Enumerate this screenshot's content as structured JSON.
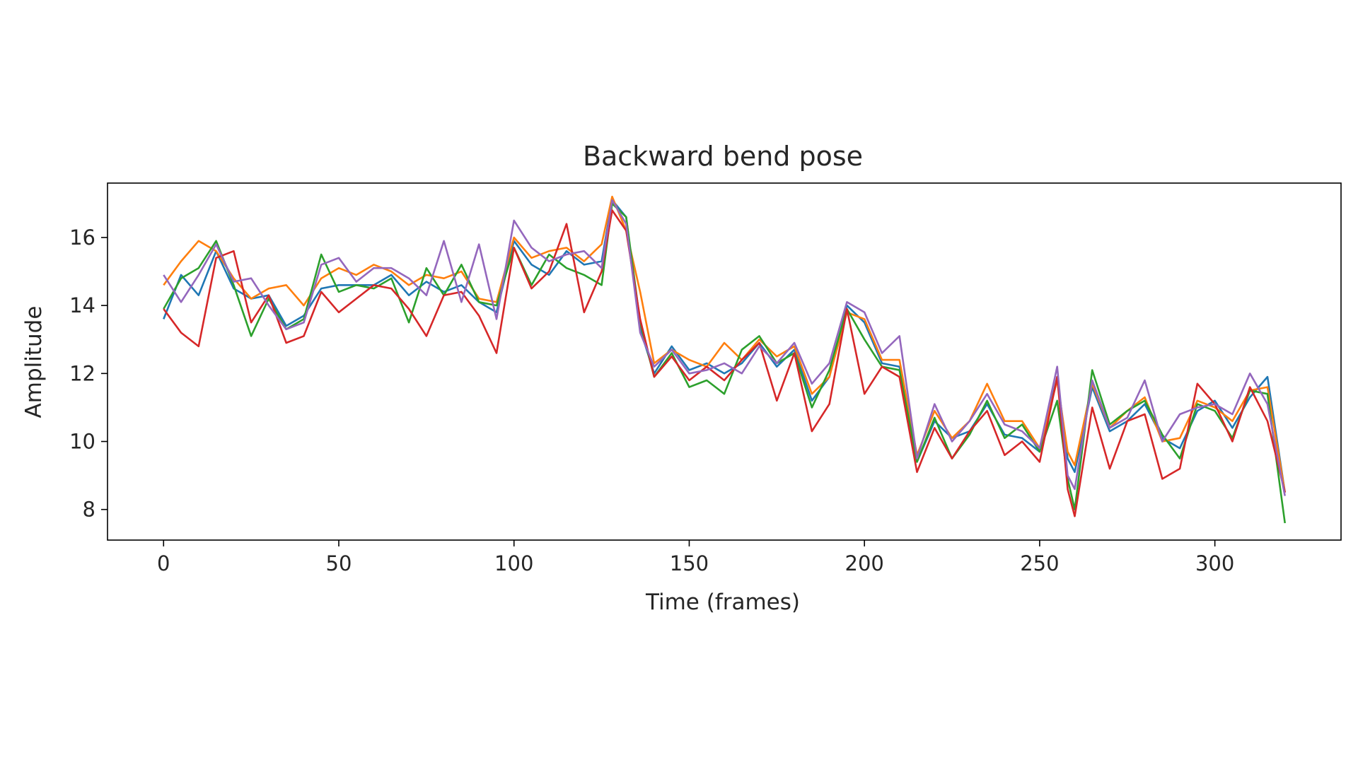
{
  "chart_data": {
    "type": "line",
    "title": "Backward bend pose",
    "xlabel": "Time (frames)",
    "ylabel": "Amplitude",
    "xlim": [
      -16,
      336
    ],
    "ylim": [
      7.1,
      17.6
    ],
    "xticks": [
      0,
      50,
      100,
      150,
      200,
      250,
      300
    ],
    "yticks": [
      8,
      10,
      12,
      14,
      16
    ],
    "grid": false,
    "legend": "none",
    "series": [
      {
        "color": "#1f77b4",
        "x": [
          0,
          5,
          10,
          15,
          20,
          25,
          30,
          35,
          40,
          45,
          50,
          55,
          60,
          65,
          70,
          75,
          80,
          85,
          90,
          95,
          100,
          105,
          110,
          115,
          120,
          125,
          128,
          132,
          136,
          140,
          145,
          150,
          155,
          160,
          165,
          170,
          175,
          180,
          185,
          190,
          195,
          200,
          205,
          210,
          215,
          220,
          225,
          230,
          235,
          240,
          245,
          250,
          255,
          258,
          260,
          265,
          270,
          275,
          280,
          285,
          290,
          295,
          300,
          305,
          310,
          315,
          320
        ],
        "y": [
          13.6,
          14.9,
          14.3,
          15.6,
          14.5,
          14.2,
          14.3,
          13.4,
          13.7,
          14.5,
          14.6,
          14.6,
          14.6,
          14.9,
          14.3,
          14.7,
          14.4,
          14.6,
          14.1,
          13.8,
          15.9,
          15.2,
          14.9,
          15.6,
          15.2,
          15.3,
          17.1,
          16.6,
          13.3,
          12.0,
          12.8,
          12.1,
          12.3,
          12.0,
          12.3,
          12.9,
          12.2,
          12.7,
          11.2,
          11.9,
          14.0,
          13.5,
          12.3,
          12.2,
          9.4,
          10.6,
          10.1,
          10.3,
          11.1,
          10.2,
          10.1,
          9.7,
          11.9,
          9.5,
          9.1,
          11.6,
          10.3,
          10.6,
          11.1,
          10.1,
          9.8,
          10.9,
          11.2,
          10.4,
          11.3,
          11.9,
          8.5
        ]
      },
      {
        "color": "#ff7f0e",
        "x": [
          0,
          5,
          10,
          15,
          20,
          25,
          30,
          35,
          40,
          45,
          50,
          55,
          60,
          65,
          70,
          75,
          80,
          85,
          90,
          95,
          100,
          105,
          110,
          115,
          120,
          125,
          128,
          132,
          136,
          140,
          145,
          150,
          155,
          160,
          165,
          170,
          175,
          180,
          185,
          190,
          195,
          200,
          205,
          210,
          215,
          220,
          225,
          230,
          235,
          240,
          245,
          250,
          255,
          258,
          260,
          265,
          270,
          275,
          280,
          285,
          290,
          295,
          300,
          305,
          310,
          315,
          320
        ],
        "y": [
          14.6,
          15.3,
          15.9,
          15.6,
          14.8,
          14.2,
          14.5,
          14.6,
          14.0,
          14.8,
          15.1,
          14.9,
          15.2,
          15.0,
          14.6,
          14.9,
          14.8,
          15.0,
          14.2,
          14.1,
          16.0,
          15.4,
          15.6,
          15.7,
          15.3,
          15.8,
          17.2,
          16.2,
          14.4,
          12.3,
          12.7,
          12.4,
          12.2,
          12.9,
          12.4,
          13.0,
          12.5,
          12.8,
          11.4,
          11.9,
          13.8,
          13.6,
          12.4,
          12.4,
          9.6,
          10.9,
          10.1,
          10.6,
          11.7,
          10.6,
          10.6,
          9.8,
          11.8,
          9.7,
          9.3,
          11.7,
          10.4,
          10.9,
          11.3,
          10.0,
          10.1,
          11.2,
          11.0,
          10.6,
          11.5,
          11.6,
          8.5
        ]
      },
      {
        "color": "#2ca02c",
        "x": [
          0,
          5,
          10,
          15,
          20,
          25,
          30,
          35,
          40,
          45,
          50,
          55,
          60,
          65,
          70,
          75,
          80,
          85,
          90,
          95,
          100,
          105,
          110,
          115,
          120,
          125,
          128,
          132,
          136,
          140,
          145,
          150,
          155,
          160,
          165,
          170,
          175,
          180,
          185,
          190,
          195,
          200,
          205,
          210,
          215,
          220,
          225,
          230,
          235,
          240,
          245,
          250,
          255,
          258,
          260,
          265,
          270,
          275,
          280,
          285,
          290,
          295,
          300,
          305,
          310,
          315,
          320
        ],
        "y": [
          13.9,
          14.8,
          15.1,
          15.9,
          14.6,
          13.1,
          14.2,
          13.3,
          13.6,
          15.5,
          14.4,
          14.6,
          14.5,
          14.8,
          13.5,
          15.1,
          14.3,
          15.2,
          14.1,
          14.0,
          15.7,
          14.6,
          15.5,
          15.1,
          14.9,
          14.6,
          17.0,
          16.6,
          13.5,
          11.9,
          12.6,
          11.6,
          11.8,
          11.4,
          12.7,
          13.1,
          12.3,
          12.6,
          11.0,
          12.1,
          13.9,
          13.0,
          12.2,
          12.1,
          9.4,
          10.7,
          9.5,
          10.2,
          11.2,
          10.1,
          10.5,
          9.7,
          11.2,
          8.9,
          8.0,
          12.1,
          10.5,
          10.9,
          11.2,
          10.2,
          9.5,
          11.1,
          10.9,
          10.1,
          11.5,
          11.4,
          7.6
        ]
      },
      {
        "color": "#d62728",
        "x": [
          0,
          5,
          10,
          15,
          20,
          25,
          30,
          35,
          40,
          45,
          50,
          55,
          60,
          65,
          70,
          75,
          80,
          85,
          90,
          95,
          100,
          105,
          110,
          115,
          120,
          125,
          128,
          132,
          136,
          140,
          145,
          150,
          155,
          160,
          165,
          170,
          175,
          180,
          185,
          190,
          195,
          200,
          205,
          210,
          215,
          220,
          225,
          230,
          235,
          240,
          245,
          250,
          255,
          258,
          260,
          265,
          270,
          275,
          280,
          285,
          290,
          295,
          300,
          305,
          310,
          315,
          320
        ],
        "y": [
          13.9,
          13.2,
          12.8,
          15.4,
          15.6,
          13.5,
          14.3,
          12.9,
          13.1,
          14.4,
          13.8,
          14.2,
          14.6,
          14.5,
          13.9,
          13.1,
          14.3,
          14.4,
          13.7,
          12.6,
          15.7,
          14.5,
          15.0,
          16.4,
          13.8,
          15.0,
          16.8,
          16.2,
          13.6,
          11.9,
          12.5,
          11.8,
          12.2,
          11.8,
          12.4,
          12.9,
          11.2,
          12.6,
          10.3,
          11.1,
          13.9,
          11.4,
          12.2,
          11.9,
          9.1,
          10.4,
          9.5,
          10.3,
          10.9,
          9.6,
          10.0,
          9.4,
          11.9,
          8.6,
          7.8,
          11.0,
          9.2,
          10.6,
          10.8,
          8.9,
          9.2,
          11.7,
          11.1,
          10.0,
          11.6,
          10.6,
          8.5
        ]
      },
      {
        "color": "#9467bd",
        "x": [
          0,
          5,
          10,
          15,
          20,
          25,
          30,
          35,
          40,
          45,
          50,
          55,
          60,
          65,
          70,
          75,
          80,
          85,
          90,
          95,
          100,
          105,
          110,
          115,
          120,
          125,
          128,
          132,
          136,
          140,
          145,
          150,
          155,
          160,
          165,
          170,
          175,
          180,
          185,
          190,
          195,
          200,
          205,
          210,
          215,
          220,
          225,
          230,
          235,
          240,
          245,
          250,
          255,
          258,
          260,
          265,
          270,
          275,
          280,
          285,
          290,
          295,
          300,
          305,
          310,
          315,
          320
        ],
        "y": [
          14.9,
          14.1,
          14.9,
          15.8,
          14.7,
          14.8,
          14.0,
          13.3,
          13.5,
          15.2,
          15.4,
          14.7,
          15.1,
          15.1,
          14.8,
          14.3,
          15.9,
          14.1,
          15.8,
          13.6,
          16.5,
          15.7,
          15.3,
          15.5,
          15.6,
          15.1,
          17.1,
          16.4,
          13.2,
          12.2,
          12.7,
          12.0,
          12.1,
          12.3,
          12.0,
          12.8,
          12.3,
          12.9,
          11.7,
          12.3,
          14.1,
          13.8,
          12.6,
          13.1,
          9.5,
          11.1,
          10.0,
          10.6,
          11.4,
          10.5,
          10.3,
          9.8,
          12.2,
          9.0,
          8.6,
          11.8,
          10.4,
          10.7,
          11.8,
          10.0,
          10.8,
          11.0,
          11.1,
          10.8,
          12.0,
          11.1,
          8.4
        ]
      }
    ]
  }
}
